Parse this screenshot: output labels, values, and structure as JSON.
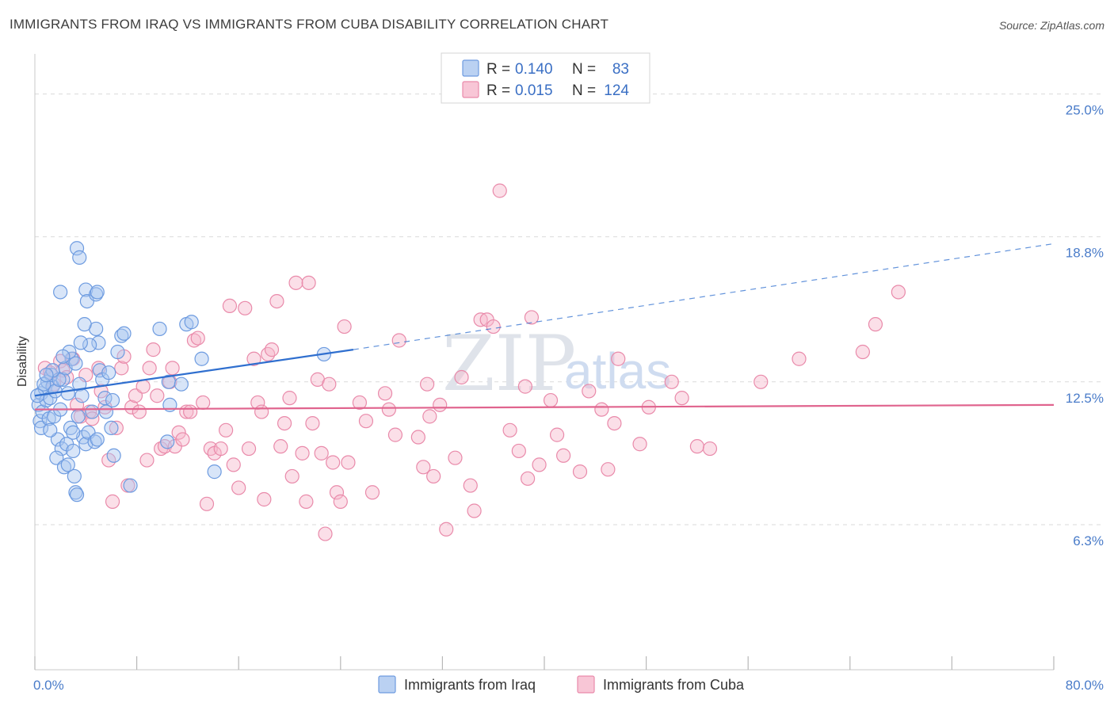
{
  "title": "IMMIGRANTS FROM IRAQ VS IMMIGRANTS FROM CUBA DISABILITY CORRELATION CHART",
  "source": "Source: ZipAtlas.com",
  "watermark": {
    "zip": "ZIP",
    "atlas": "atlas"
  },
  "colors": {
    "iraq_fill": "#a9c6ef",
    "iraq_stroke": "#6d9be0",
    "iraq_line": "#2f6fcf",
    "cuba_fill": "#f6b8cc",
    "cuba_stroke": "#e98aaa",
    "cuba_line": "#e0648e",
    "grid": "#d9d9d9",
    "accent_text": "#4a7cc9"
  },
  "legend": {
    "r_label": "R =",
    "n_label": "N =",
    "rows": [
      {
        "series": "iraq",
        "r": "0.140",
        "n": "83"
      },
      {
        "series": "cuba",
        "r": "0.015",
        "n": "124"
      }
    ]
  },
  "chart_data": {
    "type": "scatter",
    "xlabel": "",
    "ylabel": "Disability",
    "xlim": [
      0,
      80
    ],
    "ylim": [
      0,
      26.5
    ],
    "x_tick_labels": {
      "min": "0.0%",
      "max": "80.0%"
    },
    "y_ticks": [
      {
        "value": 6.3,
        "label": "6.3%"
      },
      {
        "value": 12.5,
        "label": "12.5%"
      },
      {
        "value": 18.8,
        "label": "18.8%"
      },
      {
        "value": 25.0,
        "label": "25.0%"
      }
    ],
    "x_minor_ticks": [
      0,
      8,
      16,
      24,
      32,
      40,
      48,
      56,
      64,
      72,
      80
    ],
    "series": [
      {
        "name": "Immigrants from Iraq",
        "key": "iraq",
        "trend": {
          "x0": 0,
          "y0": 11.9,
          "x1": 25,
          "y1": 13.9,
          "dash_x1": 80,
          "dash_y1": 18.5
        },
        "points": [
          [
            0.3,
            11.5
          ],
          [
            0.5,
            12.0
          ],
          [
            0.4,
            10.8
          ],
          [
            0.6,
            11.2
          ],
          [
            0.8,
            12.2
          ],
          [
            0.5,
            10.5
          ],
          [
            0.9,
            11.7
          ],
          [
            1.0,
            12.5
          ],
          [
            1.2,
            11.8
          ],
          [
            1.1,
            10.9
          ],
          [
            1.4,
            12.3
          ],
          [
            1.5,
            11.0
          ],
          [
            1.3,
            12.8
          ],
          [
            1.6,
            12.1
          ],
          [
            1.8,
            10.0
          ],
          [
            2.0,
            11.3
          ],
          [
            2.2,
            12.6
          ],
          [
            2.4,
            13.1
          ],
          [
            2.6,
            12.0
          ],
          [
            2.1,
            9.6
          ],
          [
            1.7,
            9.2
          ],
          [
            2.3,
            8.8
          ],
          [
            2.5,
            9.8
          ],
          [
            2.8,
            10.5
          ],
          [
            3.0,
            9.5
          ],
          [
            2.9,
            13.5
          ],
          [
            3.2,
            13.3
          ],
          [
            3.5,
            12.4
          ],
          [
            3.7,
            11.9
          ],
          [
            3.4,
            11.0
          ],
          [
            3.8,
            10.1
          ],
          [
            4.0,
            9.8
          ],
          [
            4.2,
            10.3
          ],
          [
            4.5,
            11.2
          ],
          [
            4.7,
            9.9
          ],
          [
            4.9,
            10.0
          ],
          [
            5.1,
            13.0
          ],
          [
            5.3,
            12.6
          ],
          [
            5.5,
            11.8
          ],
          [
            5.0,
            14.2
          ],
          [
            4.8,
            14.8
          ],
          [
            4.3,
            14.1
          ],
          [
            3.6,
            14.2
          ],
          [
            3.9,
            15.0
          ],
          [
            2.7,
            13.8
          ],
          [
            2.0,
            16.4
          ],
          [
            3.3,
            18.3
          ],
          [
            3.5,
            17.9
          ],
          [
            4.0,
            16.5
          ],
          [
            4.1,
            16.0
          ],
          [
            4.8,
            16.3
          ],
          [
            4.9,
            16.4
          ],
          [
            6.0,
            10.5
          ],
          [
            6.2,
            9.3
          ],
          [
            6.5,
            13.8
          ],
          [
            6.8,
            14.5
          ],
          [
            7.0,
            14.6
          ],
          [
            7.5,
            8.0
          ],
          [
            9.8,
            14.8
          ],
          [
            10.4,
            9.9
          ],
          [
            10.6,
            11.5
          ],
          [
            10.5,
            12.5
          ],
          [
            11.5,
            12.4
          ],
          [
            11.9,
            15.0
          ],
          [
            12.3,
            15.1
          ],
          [
            13.1,
            13.5
          ],
          [
            14.1,
            8.6
          ],
          [
            22.7,
            13.7
          ],
          [
            3.2,
            7.7
          ],
          [
            3.3,
            7.6
          ],
          [
            3.1,
            8.4
          ],
          [
            1.2,
            10.4
          ],
          [
            0.7,
            12.4
          ],
          [
            1.9,
            12.6
          ],
          [
            2.6,
            8.9
          ],
          [
            5.8,
            12.9
          ],
          [
            6.1,
            11.7
          ],
          [
            5.6,
            11.2
          ],
          [
            3.0,
            10.3
          ],
          [
            2.2,
            13.6
          ],
          [
            1.4,
            13.0
          ],
          [
            0.9,
            12.8
          ],
          [
            0.2,
            11.9
          ]
        ]
      },
      {
        "name": "Immigrants from Cuba",
        "key": "cuba",
        "trend": {
          "x0": 0,
          "y0": 11.3,
          "x1": 80,
          "y1": 11.5
        },
        "points": [
          [
            0.8,
            13.1
          ],
          [
            1.2,
            12.9
          ],
          [
            1.5,
            12.4
          ],
          [
            2.0,
            13.4
          ],
          [
            2.2,
            13.0
          ],
          [
            2.5,
            12.7
          ],
          [
            3.0,
            13.5
          ],
          [
            3.3,
            11.5
          ],
          [
            3.6,
            11.0
          ],
          [
            4.0,
            12.8
          ],
          [
            4.3,
            11.2
          ],
          [
            4.5,
            10.9
          ],
          [
            5.0,
            13.1
          ],
          [
            5.2,
            12.1
          ],
          [
            5.5,
            11.4
          ],
          [
            5.8,
            9.1
          ],
          [
            6.1,
            7.3
          ],
          [
            6.4,
            10.5
          ],
          [
            6.8,
            13.1
          ],
          [
            7.0,
            13.6
          ],
          [
            7.3,
            8.0
          ],
          [
            7.6,
            11.4
          ],
          [
            7.9,
            11.9
          ],
          [
            8.2,
            11.2
          ],
          [
            8.5,
            12.3
          ],
          [
            8.8,
            9.1
          ],
          [
            9.0,
            13.1
          ],
          [
            9.3,
            13.9
          ],
          [
            9.6,
            11.9
          ],
          [
            9.9,
            9.6
          ],
          [
            10.2,
            9.7
          ],
          [
            10.6,
            12.5
          ],
          [
            10.8,
            13.1
          ],
          [
            11.0,
            9.7
          ],
          [
            11.3,
            10.3
          ],
          [
            11.6,
            10.0
          ],
          [
            11.9,
            11.2
          ],
          [
            12.2,
            11.2
          ],
          [
            12.5,
            14.3
          ],
          [
            12.8,
            14.4
          ],
          [
            13.2,
            11.6
          ],
          [
            13.5,
            7.2
          ],
          [
            13.8,
            9.6
          ],
          [
            14.1,
            9.4
          ],
          [
            14.6,
            9.6
          ],
          [
            15.0,
            10.4
          ],
          [
            15.3,
            15.8
          ],
          [
            15.6,
            8.9
          ],
          [
            16.0,
            7.9
          ],
          [
            16.5,
            15.7
          ],
          [
            16.8,
            9.6
          ],
          [
            17.2,
            13.5
          ],
          [
            17.5,
            11.6
          ],
          [
            17.8,
            11.2
          ],
          [
            18.0,
            7.4
          ],
          [
            18.3,
            13.7
          ],
          [
            18.6,
            13.9
          ],
          [
            19.0,
            16.0
          ],
          [
            19.3,
            9.7
          ],
          [
            19.6,
            10.7
          ],
          [
            20.0,
            11.8
          ],
          [
            20.2,
            8.4
          ],
          [
            20.5,
            16.8
          ],
          [
            21.0,
            9.4
          ],
          [
            21.3,
            7.3
          ],
          [
            21.5,
            16.8
          ],
          [
            21.8,
            10.7
          ],
          [
            22.2,
            12.6
          ],
          [
            22.5,
            9.4
          ],
          [
            22.8,
            5.9
          ],
          [
            23.1,
            12.4
          ],
          [
            23.4,
            9.0
          ],
          [
            23.7,
            7.7
          ],
          [
            24.0,
            7.3
          ],
          [
            24.3,
            14.9
          ],
          [
            24.6,
            9.0
          ],
          [
            25.5,
            11.6
          ],
          [
            26.0,
            10.8
          ],
          [
            26.5,
            7.7
          ],
          [
            27.5,
            12.0
          ],
          [
            27.8,
            11.3
          ],
          [
            28.3,
            10.2
          ],
          [
            28.6,
            14.3
          ],
          [
            30.1,
            10.1
          ],
          [
            30.5,
            8.8
          ],
          [
            30.8,
            12.4
          ],
          [
            31.0,
            11.0
          ],
          [
            31.3,
            8.4
          ],
          [
            31.8,
            11.5
          ],
          [
            32.3,
            6.1
          ],
          [
            33.0,
            9.2
          ],
          [
            33.5,
            12.7
          ],
          [
            34.2,
            8.0
          ],
          [
            34.5,
            6.9
          ],
          [
            35.0,
            15.2
          ],
          [
            35.5,
            15.2
          ],
          [
            36.0,
            14.9
          ],
          [
            36.5,
            20.8
          ],
          [
            37.3,
            10.4
          ],
          [
            38.0,
            9.5
          ],
          [
            38.5,
            12.3
          ],
          [
            38.7,
            8.3
          ],
          [
            39.0,
            15.3
          ],
          [
            39.6,
            8.9
          ],
          [
            40.5,
            11.7
          ],
          [
            41.0,
            10.2
          ],
          [
            41.5,
            9.3
          ],
          [
            42.8,
            8.6
          ],
          [
            43.5,
            12.1
          ],
          [
            44.5,
            11.3
          ],
          [
            45.0,
            8.7
          ],
          [
            45.5,
            10.7
          ],
          [
            45.8,
            13.5
          ],
          [
            47.5,
            9.8
          ],
          [
            48.2,
            11.4
          ],
          [
            50.0,
            12.5
          ],
          [
            50.8,
            11.8
          ],
          [
            52.0,
            9.7
          ],
          [
            53.0,
            9.6
          ],
          [
            57.0,
            12.5
          ],
          [
            60.0,
            13.5
          ],
          [
            65.0,
            13.8
          ],
          [
            66.0,
            15.0
          ],
          [
            67.8,
            16.4
          ]
        ]
      }
    ]
  }
}
